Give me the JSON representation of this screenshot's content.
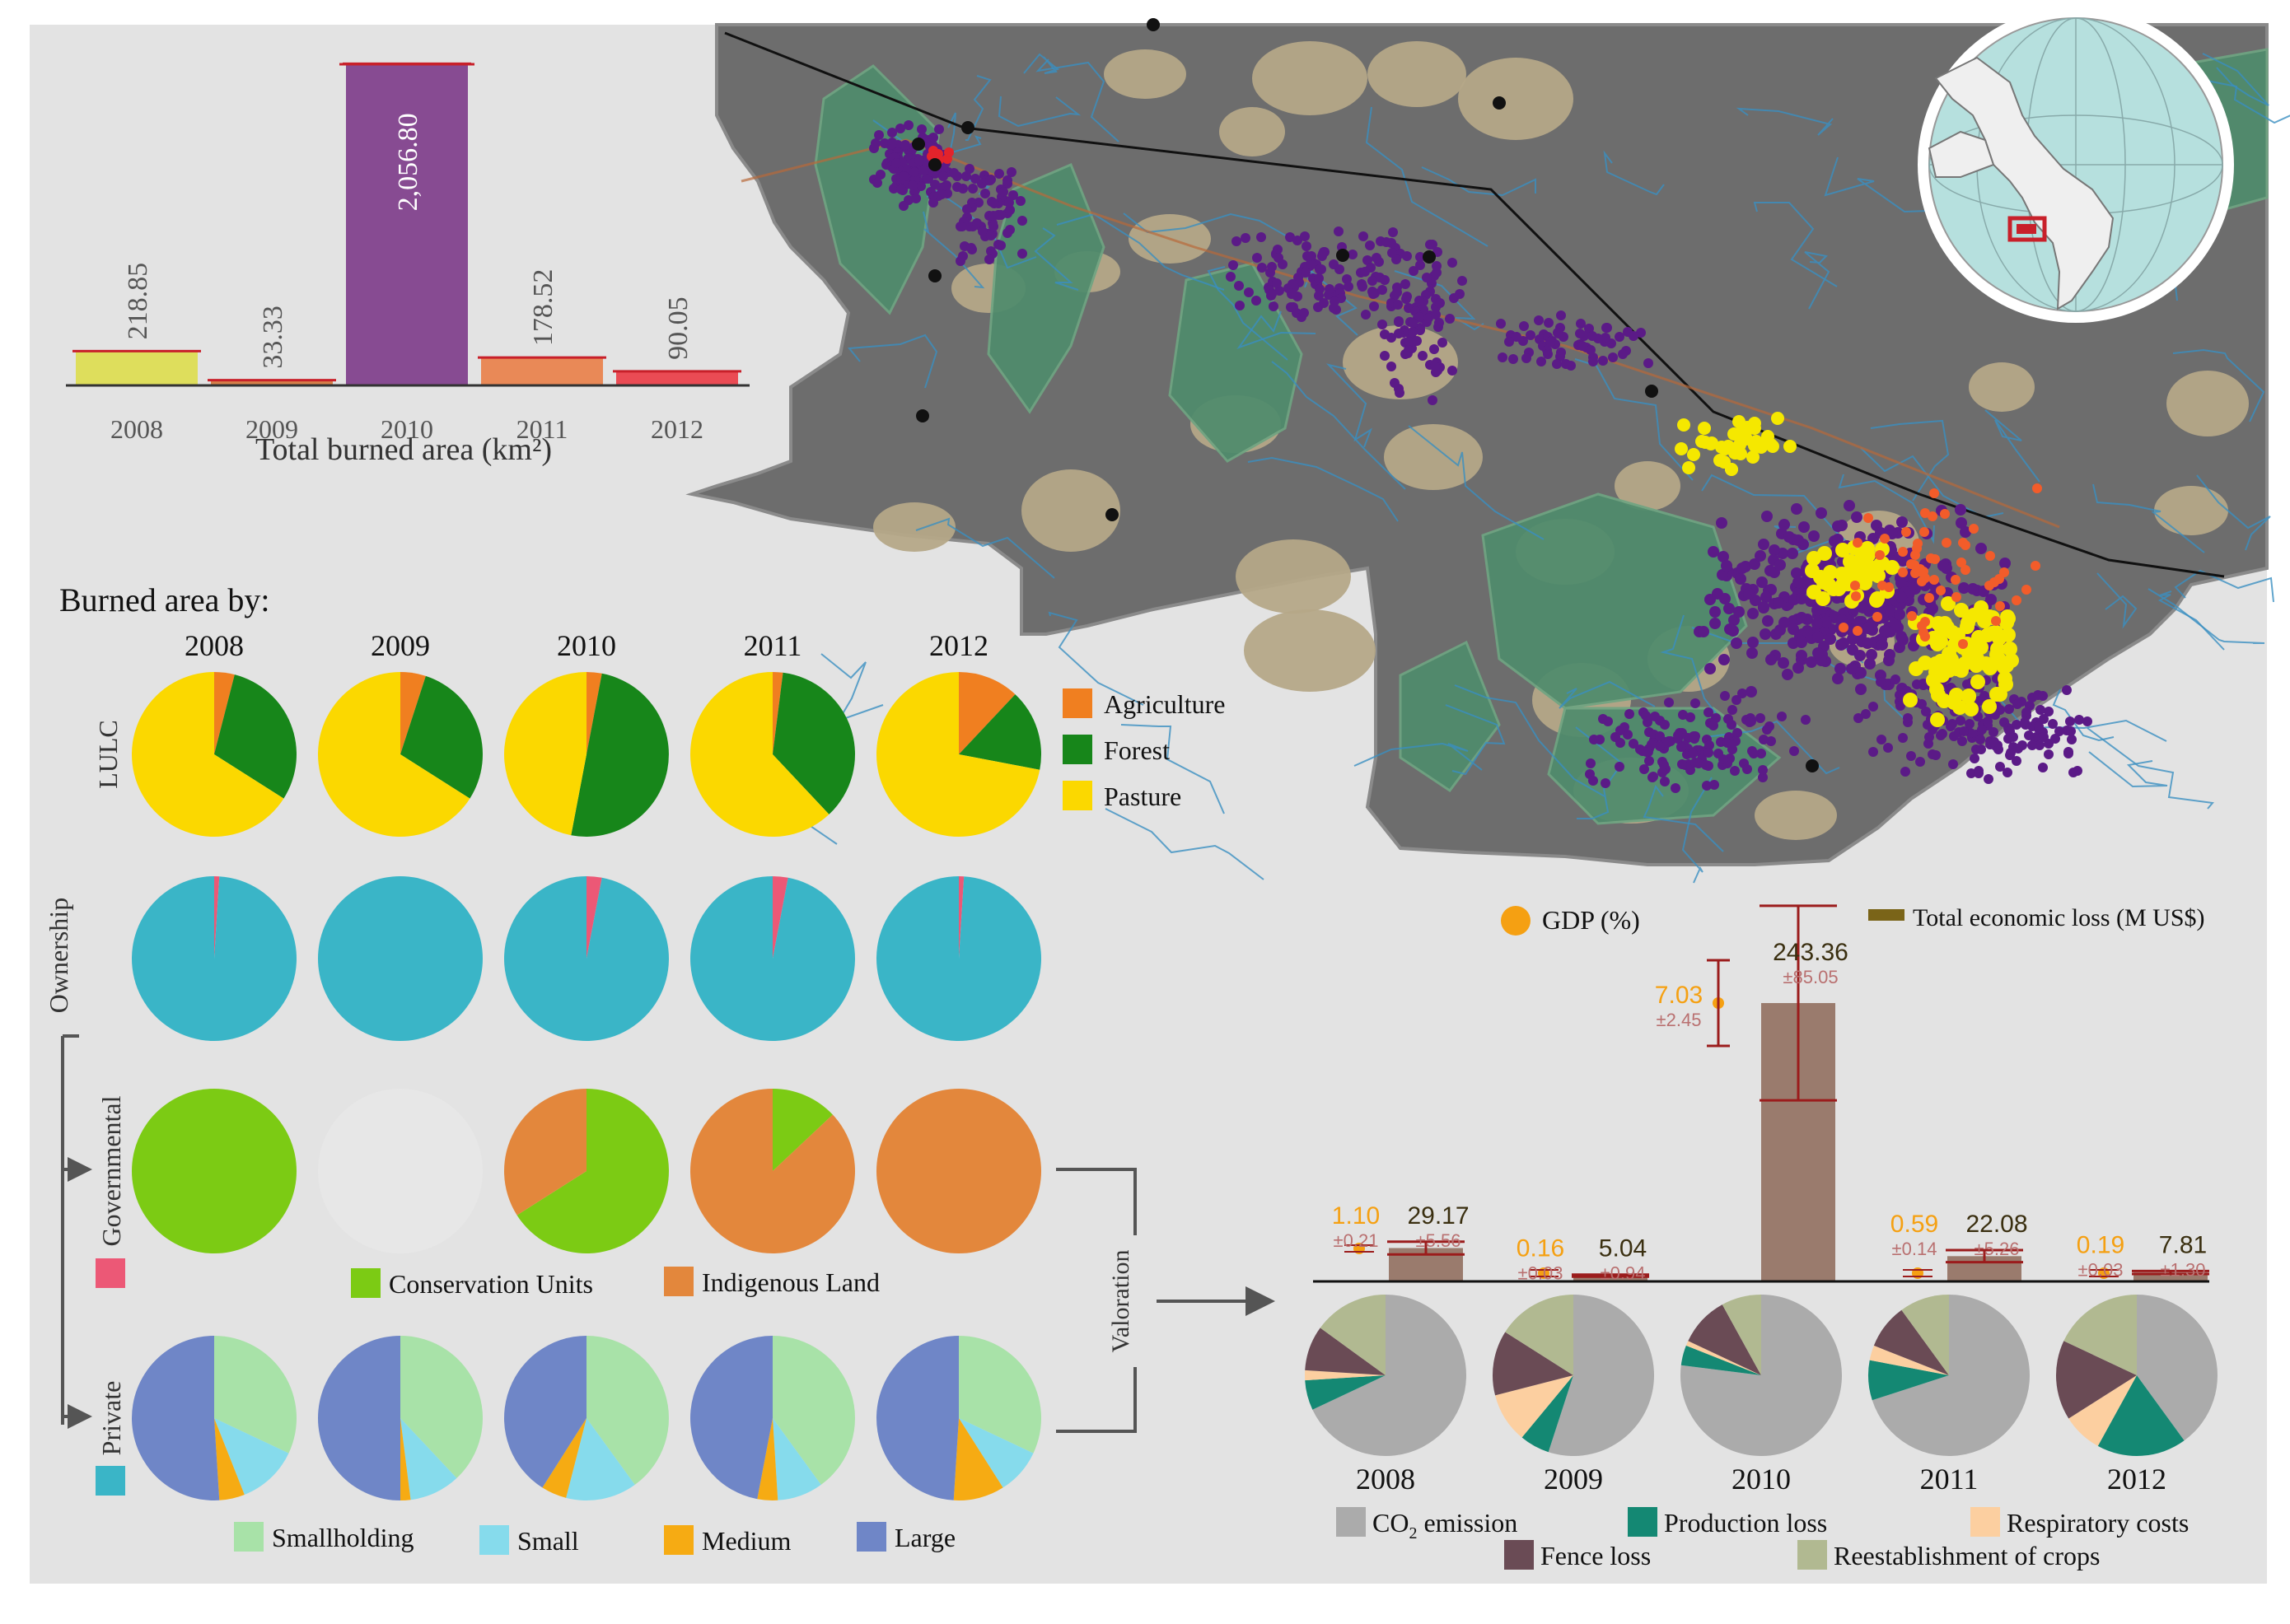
{
  "chart_data": [
    {
      "type": "bar",
      "categories": [
        "2008",
        "2009",
        "2010",
        "2011",
        "2012"
      ],
      "values": [
        218.85,
        33.33,
        2056.8,
        178.52,
        90.05
      ],
      "value_labels": [
        "218.85",
        "33.33",
        "2,056.80",
        "178.52",
        "90.05"
      ],
      "colors": [
        "#dede5c",
        "#d6804a",
        "#874b92",
        "#e98957",
        "#ea4b54"
      ],
      "xlabel": "Total burned area (km²)",
      "ylim": [
        0,
        2150
      ]
    },
    {
      "type": "pie",
      "title": "Burned area by:",
      "years": [
        "2008",
        "2009",
        "2010",
        "2011",
        "2012"
      ],
      "rows": [
        {
          "name": "LULC",
          "row_label": "LULC",
          "slices": [
            "Agriculture",
            "Forest",
            "Pasture"
          ],
          "colors": [
            "#f07f20",
            "#17861a",
            "#fbd800"
          ],
          "values": [
            [
              4,
              30,
              66
            ],
            [
              5,
              29,
              66
            ],
            [
              3,
              50,
              47
            ],
            [
              2,
              36,
              62
            ],
            [
              12,
              16,
              72
            ]
          ]
        },
        {
          "name": "Ownership",
          "row_label": "Ownership",
          "slices": [
            "Governmental",
            "Private"
          ],
          "colors": [
            "#ec5876",
            "#3ab5c7"
          ],
          "values": [
            [
              1,
              99
            ],
            [
              0,
              100
            ],
            [
              3,
              97
            ],
            [
              3,
              97
            ],
            [
              1,
              99
            ]
          ]
        },
        {
          "name": "Governmental",
          "row_label": "Governmental",
          "slices": [
            "Conservation Units",
            "Indigenous Land"
          ],
          "colors": [
            "#7ccb14",
            "#e3873c"
          ],
          "values": [
            [
              100,
              0
            ],
            [
              0,
              0
            ],
            [
              66,
              34
            ],
            [
              13,
              87
            ],
            [
              0,
              100
            ]
          ]
        },
        {
          "name": "Private",
          "row_label": "Private",
          "slices": [
            "Smallholding",
            "Small",
            "Medium",
            "Large"
          ],
          "colors": [
            "#a8e2a8",
            "#86dbec",
            "#f6ab13",
            "#6f86c7"
          ],
          "values": [
            [
              32,
              12,
              5,
              51
            ],
            [
              38,
              10,
              2,
              50
            ],
            [
              40,
              14,
              5,
              41
            ],
            [
              40,
              9,
              4,
              47
            ],
            [
              32,
              9,
              10,
              49
            ]
          ]
        }
      ]
    },
    {
      "type": "bar",
      "categories": [
        "2008",
        "2009",
        "2010",
        "2011",
        "2012"
      ],
      "series": [
        {
          "name": "Total economic loss (M US$)",
          "values": [
            29.17,
            5.04,
            243.36,
            22.08,
            7.81
          ],
          "errors": [
            5.56,
            0.94,
            85.05,
            5.26,
            1.3
          ],
          "value_labels": [
            "29.17",
            "5.04",
            "243.36",
            "22.08",
            "7.81"
          ],
          "error_labels": [
            "±5.56",
            "±0.94",
            "±85.05",
            "±5.26",
            "±1.30"
          ],
          "color": "#9a7b6d"
        },
        {
          "name": "GDP (%)",
          "values": [
            1.1,
            0.16,
            7.03,
            0.59,
            0.19
          ],
          "errors": [
            0.21,
            0.03,
            2.45,
            0.14,
            0.03
          ],
          "value_labels": [
            "1.10",
            "0.16",
            "7.03",
            "0.59",
            "0.19"
          ],
          "error_labels": [
            "±0.21",
            "±0.03",
            "±2.45",
            "±0.14",
            "±0.03"
          ],
          "color": "#f5a012"
        }
      ],
      "ylim": [
        0,
        300
      ]
    },
    {
      "type": "pie",
      "title": "Valoration",
      "years": [
        "2008",
        "2009",
        "2010",
        "2011",
        "2012"
      ],
      "slices": [
        "CO2 emission",
        "Production loss",
        "Respiratory costs",
        "Fence loss",
        "Reestablishment of crops"
      ],
      "colors": [
        "#ababab",
        "#148873",
        "#fccfa0",
        "#6a4b55",
        "#b1b991"
      ],
      "values": [
        [
          68,
          6,
          2,
          9,
          15
        ],
        [
          55,
          6,
          10,
          13,
          16
        ],
        [
          77,
          4,
          1,
          10,
          8
        ],
        [
          70,
          8,
          3,
          9,
          10
        ],
        [
          40,
          18,
          8,
          16,
          18
        ]
      ]
    }
  ],
  "legends": {
    "lulc": [
      "Agriculture",
      "Forest",
      "Pasture"
    ],
    "governmental": [
      "Conservation Units",
      "Indigenous Land"
    ],
    "private": [
      "Smallholding",
      "Small",
      "Medium",
      "Large"
    ],
    "valoration": [
      "CO",
      "2",
      " emission",
      "Production loss",
      "Respiratory costs",
      "Fence loss",
      "Reestablishment of crops"
    ],
    "economic": [
      "GDP (%)",
      "Total economic loss (M US$)"
    ]
  },
  "map": {
    "fire_colors": {
      "2008": "#f5e800",
      "2010": "#5b1a87",
      "2011": "#f25c2a",
      "2012": "#e3232b"
    },
    "land_colors": {
      "background": "#6d6d6d",
      "conservation": "#4e8c6a",
      "pasture": "#b5a888",
      "river": "#3a8fc0"
    }
  }
}
